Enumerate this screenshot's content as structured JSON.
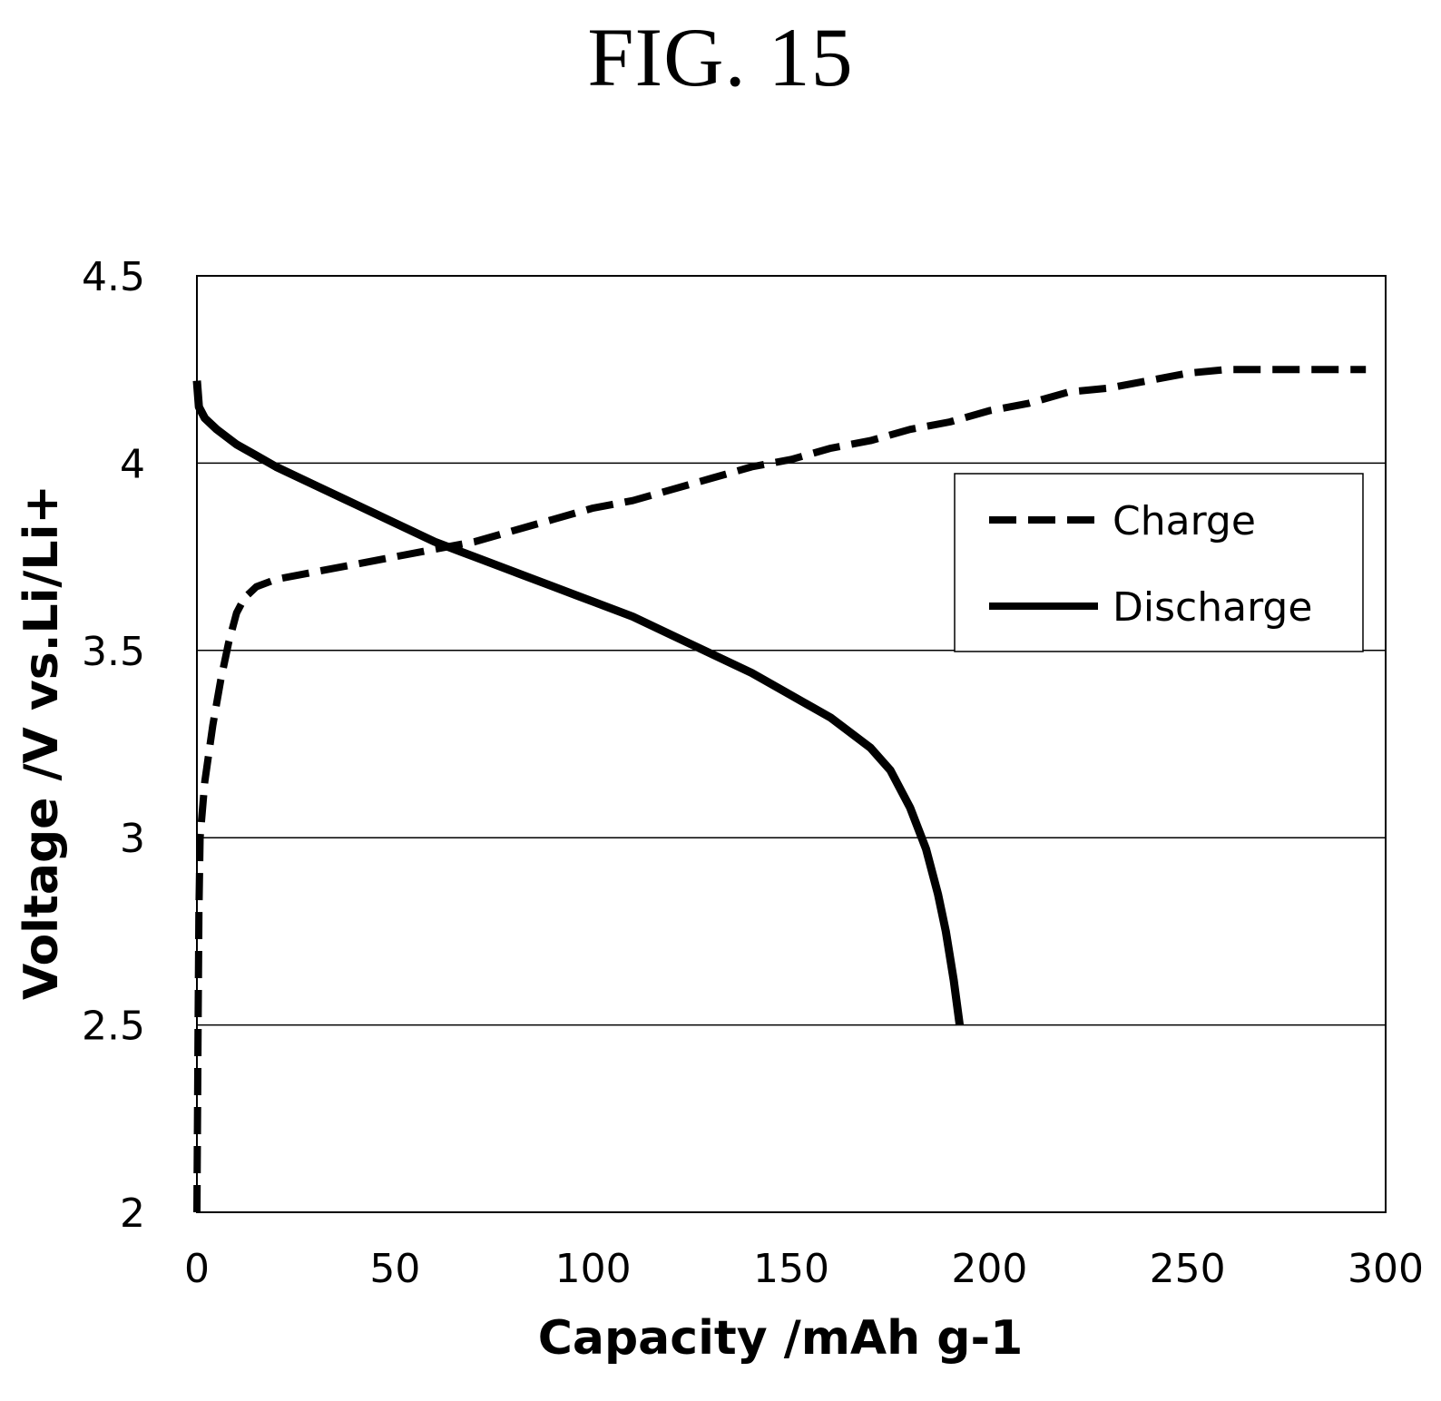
{
  "figure_label": "FIG. 15",
  "chart_data": {
    "type": "line",
    "xlabel": "Capacity /mAh g-1",
    "ylabel": "Voltage /V vs.Li/Li+",
    "xlim": [
      0,
      300
    ],
    "ylim": [
      2,
      4.5
    ],
    "x_ticks": [
      "0",
      "50",
      "100",
      "150",
      "200",
      "250",
      "300"
    ],
    "y_ticks": [
      "2",
      "2.5",
      "3",
      "3.5",
      "4",
      "4.5"
    ],
    "grid": "horizontal",
    "legend_position": "right",
    "colors": {
      "line": "#000000",
      "grid": "#000000"
    },
    "series": [
      {
        "name": "Charge",
        "style": "dashed",
        "points": [
          [
            0,
            2.0
          ],
          [
            0.3,
            2.5
          ],
          [
            0.5,
            2.8
          ],
          [
            0.8,
            3.0
          ],
          [
            2,
            3.15
          ],
          [
            4,
            3.3
          ],
          [
            6,
            3.42
          ],
          [
            8,
            3.52
          ],
          [
            10,
            3.6
          ],
          [
            12,
            3.64
          ],
          [
            15,
            3.67
          ],
          [
            20,
            3.69
          ],
          [
            30,
            3.71
          ],
          [
            40,
            3.73
          ],
          [
            50,
            3.75
          ],
          [
            60,
            3.77
          ],
          [
            70,
            3.79
          ],
          [
            80,
            3.82
          ],
          [
            90,
            3.85
          ],
          [
            100,
            3.88
          ],
          [
            110,
            3.9
          ],
          [
            120,
            3.93
          ],
          [
            130,
            3.96
          ],
          [
            140,
            3.99
          ],
          [
            150,
            4.01
          ],
          [
            160,
            4.04
          ],
          [
            170,
            4.06
          ],
          [
            180,
            4.09
          ],
          [
            190,
            4.11
          ],
          [
            200,
            4.14
          ],
          [
            210,
            4.16
          ],
          [
            220,
            4.19
          ],
          [
            230,
            4.2
          ],
          [
            240,
            4.22
          ],
          [
            250,
            4.24
          ],
          [
            260,
            4.25
          ],
          [
            270,
            4.25
          ],
          [
            280,
            4.25
          ],
          [
            295,
            4.25
          ]
        ]
      },
      {
        "name": "Discharge",
        "style": "solid",
        "points": [
          [
            0,
            4.22
          ],
          [
            0.5,
            4.15
          ],
          [
            2,
            4.12
          ],
          [
            5,
            4.09
          ],
          [
            10,
            4.05
          ],
          [
            15,
            4.02
          ],
          [
            20,
            3.99
          ],
          [
            30,
            3.94
          ],
          [
            40,
            3.89
          ],
          [
            50,
            3.84
          ],
          [
            60,
            3.79
          ],
          [
            70,
            3.75
          ],
          [
            80,
            3.71
          ],
          [
            90,
            3.67
          ],
          [
            100,
            3.63
          ],
          [
            110,
            3.59
          ],
          [
            120,
            3.54
          ],
          [
            130,
            3.49
          ],
          [
            140,
            3.44
          ],
          [
            150,
            3.38
          ],
          [
            160,
            3.32
          ],
          [
            170,
            3.24
          ],
          [
            175,
            3.18
          ],
          [
            180,
            3.08
          ],
          [
            184,
            2.97
          ],
          [
            187,
            2.85
          ],
          [
            189,
            2.75
          ],
          [
            191,
            2.62
          ],
          [
            192,
            2.54
          ],
          [
            192.5,
            2.5
          ]
        ]
      }
    ]
  }
}
